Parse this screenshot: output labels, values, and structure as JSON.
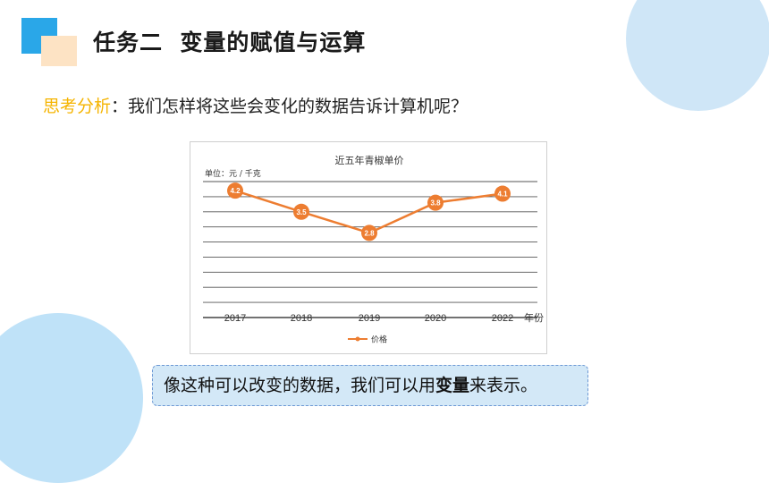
{
  "header": {
    "title": "任务二  变量的赋值与运算"
  },
  "think": {
    "highlight": "思考分析",
    "text": "：我们怎样将这些会变化的数据告诉计算机呢？"
  },
  "chart_data": {
    "type": "line",
    "title": "近五年青椒单价",
    "unit_label": "单位：元 / 千克",
    "categories": [
      "2017",
      "2018",
      "2019",
      "2020",
      "2022"
    ],
    "x_axis_suffix": "年份",
    "series": [
      {
        "name": "价格",
        "values": [
          4.2,
          3.5,
          2.8,
          3.8,
          4.1
        ],
        "color": "#ed7d31"
      }
    ],
    "ylim": [
      0,
      4.5
    ],
    "grid": true,
    "legend_position": "bottom"
  },
  "callout": {
    "pre": "像这种可以改变的数据，我们可以用",
    "bold": "变量",
    "post": "来表示。"
  },
  "colors": {
    "accent_blue": "#2aa7e8",
    "accent_peach": "#fde3c4",
    "highlight_yellow": "#f5b400",
    "line_orange": "#ed7d31"
  }
}
